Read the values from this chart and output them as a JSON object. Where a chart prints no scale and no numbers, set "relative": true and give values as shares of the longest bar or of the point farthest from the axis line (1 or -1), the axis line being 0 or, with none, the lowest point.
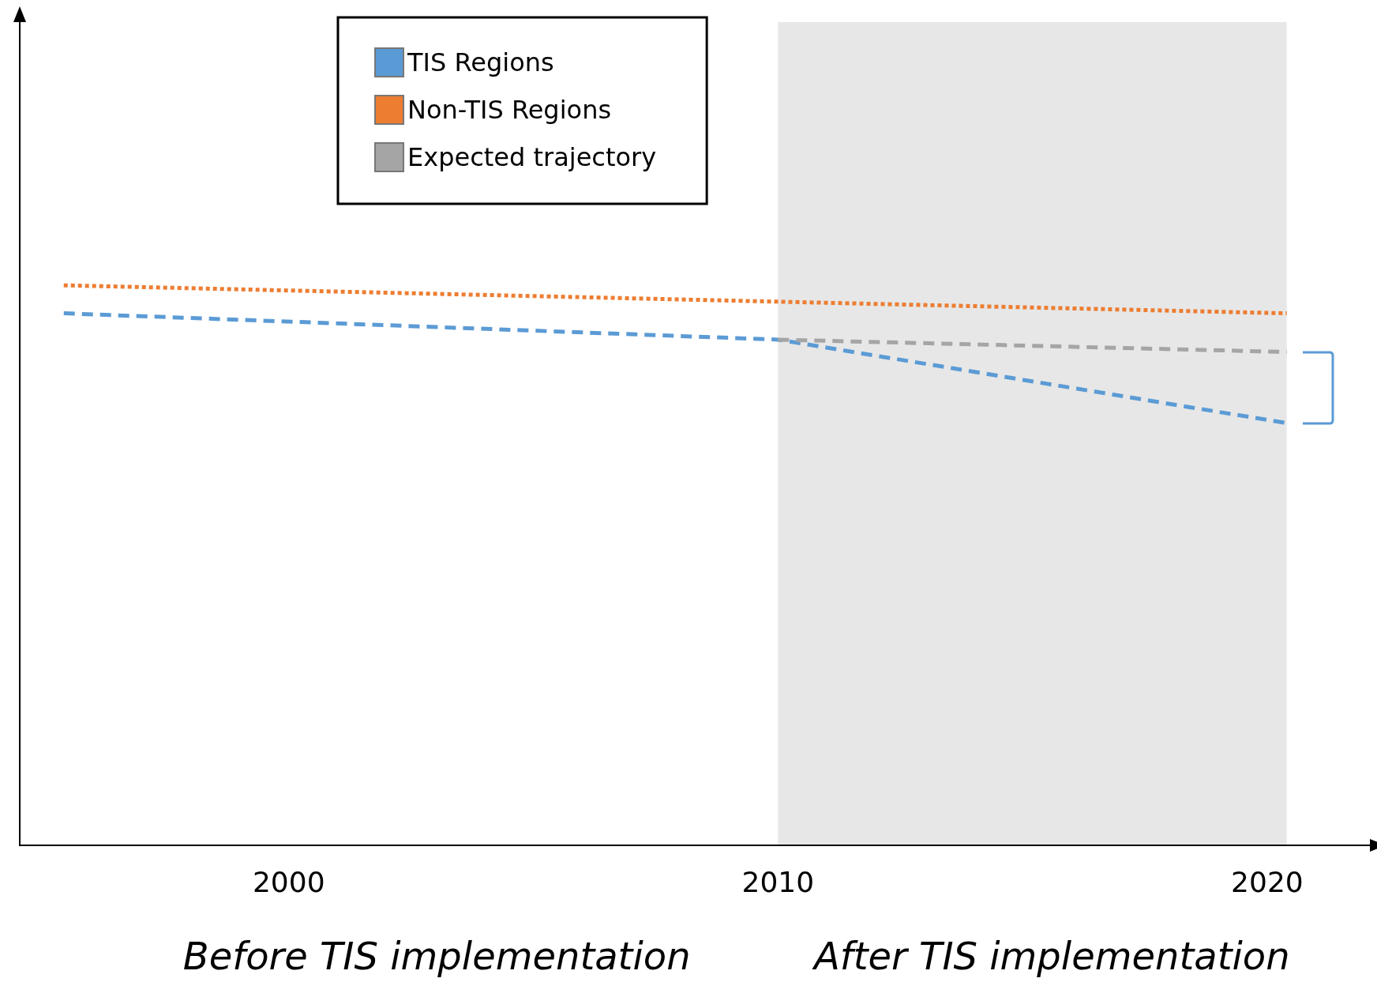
{
  "chart_data": {
    "type": "line",
    "relative": true,
    "xlim": [
      1994.5,
      2022.1
    ],
    "xticks": [
      2000,
      2010,
      2020
    ],
    "grid": false,
    "legend": "top",
    "marker": "none",
    "series": [
      {
        "name": "TIS Regions",
        "color": "#5b9bd5",
        "line_style": "dashed",
        "x": [
          1995.4,
          2010,
          2020.4
        ],
        "values": [
          0.95,
          0.903,
          0.754
        ]
      },
      {
        "name": "Non-TIS Regions",
        "color": "#ed7d31",
        "line_style": "dotted",
        "x": [
          1995.4,
          2020.4
        ],
        "values": [
          1,
          0.95
        ]
      },
      {
        "name": "Expected trajectory",
        "color": "#a5a5a5",
        "line_style": "dashed",
        "x": [
          2010,
          2020.4
        ],
        "values": [
          0.903,
          0.881
        ]
      }
    ],
    "bands": [
      {
        "axis": "x",
        "from": 2010,
        "to": 2020.4,
        "color": "#e7e7e7"
      }
    ],
    "annotations": [
      "Before TIS implementation",
      "After TIS implementation"
    ]
  }
}
